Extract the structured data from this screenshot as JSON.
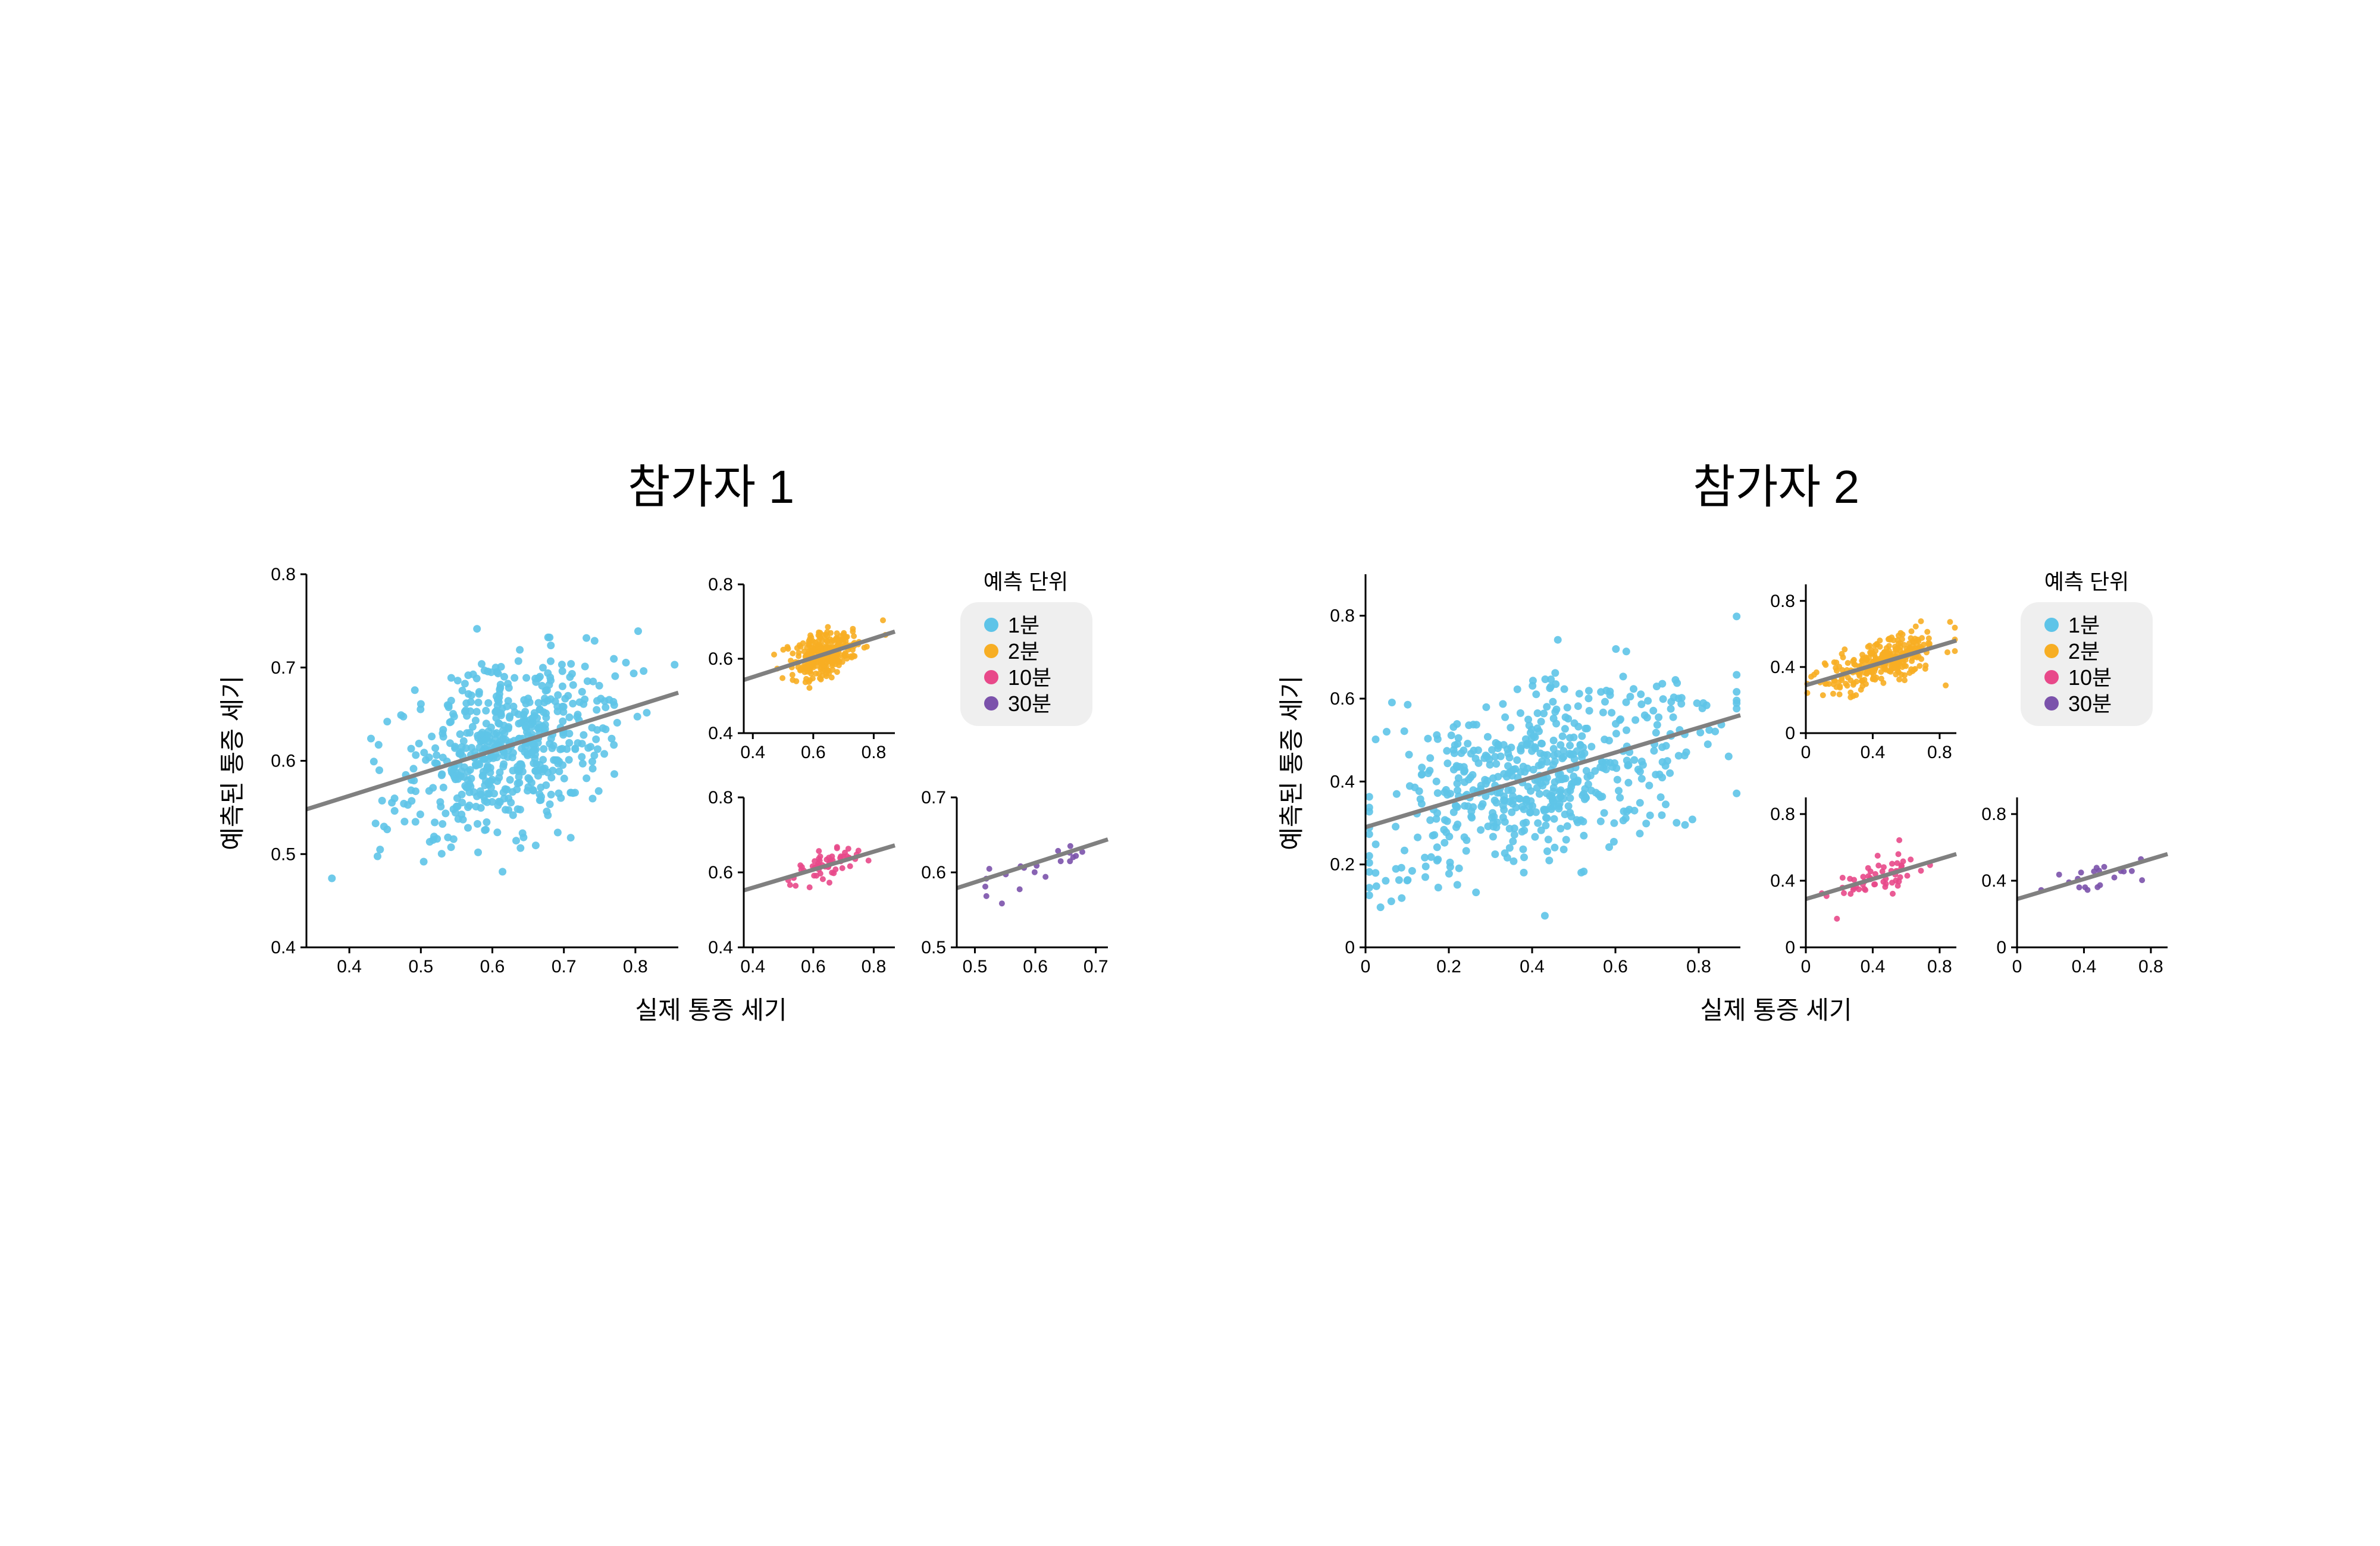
{
  "figure": {
    "colors": {
      "1m": "#5ec4e8",
      "2m": "#f7ae24",
      "10m": "#e8498a",
      "30m": "#7b52ab",
      "fit": "#808080"
    },
    "legend": {
      "title": "예측 단위",
      "items": [
        {
          "key": "1m",
          "label": "1분"
        },
        {
          "key": "2m",
          "label": "2분"
        },
        {
          "key": "10m",
          "label": "10분"
        },
        {
          "key": "30m",
          "label": "30분"
        }
      ]
    },
    "shared_ylabel": "예측된 통증 세기",
    "shared_xlabel": "실제 통증 세기"
  },
  "chart_data": [
    {
      "panel_title": "참가자 1",
      "xlabel": "실제 통증 세기",
      "ylabel": "예측된 통증 세기",
      "subplots": [
        {
          "name": "p1-1m",
          "type": "scatter",
          "series_key": "1m",
          "n": 560,
          "xlim": [
            0.34,
            0.86
          ],
          "ylim": [
            0.4,
            0.8
          ],
          "xticks": [
            0.4,
            0.5,
            0.6,
            0.7,
            0.8
          ],
          "yticks": [
            0.4,
            0.5,
            0.6,
            0.7,
            0.8
          ],
          "xtick_labels": [
            "0.4",
            "0.5",
            "0.6",
            "0.7",
            "0.8"
          ],
          "ytick_labels": [
            "0.4",
            "0.5",
            "0.6",
            "0.7",
            "0.8"
          ],
          "x_mean": 0.62,
          "x_sd": 0.075,
          "slope": 0.24,
          "intercept": 0.467,
          "noise_sd": 0.045,
          "fit_line": {
            "x": [
              0.34,
              0.86
            ],
            "y": [
              0.548,
              0.673
            ]
          }
        },
        {
          "name": "p1-2m",
          "type": "scatter",
          "series_key": "2m",
          "n": 280,
          "xlim": [
            0.37,
            0.87
          ],
          "ylim": [
            0.4,
            0.8
          ],
          "xticks": [
            0.4,
            0.6,
            0.8
          ],
          "yticks": [
            0.4,
            0.6,
            0.8
          ],
          "xtick_labels": [
            "0.4",
            "0.6",
            "0.8"
          ],
          "ytick_labels": [
            "0.4",
            "0.6",
            "0.8"
          ],
          "x_mean": 0.64,
          "x_sd": 0.06,
          "slope": 0.26,
          "intercept": 0.447,
          "noise_sd": 0.03,
          "fit_line": {
            "x": [
              0.37,
              0.87
            ],
            "y": [
              0.543,
              0.673
            ]
          }
        },
        {
          "name": "p1-10m",
          "type": "scatter",
          "series_key": "10m",
          "n": 56,
          "xlim": [
            0.37,
            0.87
          ],
          "ylim": [
            0.4,
            0.8
          ],
          "xticks": [
            0.4,
            0.6,
            0.8
          ],
          "yticks": [
            0.4,
            0.6,
            0.8
          ],
          "xtick_labels": [
            "0.4",
            "0.6",
            "0.8"
          ],
          "ytick_labels": [
            "0.4",
            "0.6",
            "0.8"
          ],
          "x_mean": 0.64,
          "x_sd": 0.055,
          "slope": 0.24,
          "intercept": 0.463,
          "noise_sd": 0.022,
          "fit_line": {
            "x": [
              0.37,
              0.87
            ],
            "y": [
              0.552,
              0.672
            ]
          }
        },
        {
          "name": "p1-30m",
          "type": "scatter",
          "series_key": "30m",
          "n": 20,
          "xlim": [
            0.47,
            0.72
          ],
          "ylim": [
            0.5,
            0.7
          ],
          "xticks": [
            0.5,
            0.6,
            0.7
          ],
          "yticks": [
            0.5,
            0.6,
            0.7
          ],
          "xtick_labels": [
            "0.5",
            "0.6",
            "0.7"
          ],
          "ytick_labels": [
            "0.5",
            "0.6",
            "0.7"
          ],
          "x_mean": 0.61,
          "x_sd": 0.05,
          "slope": 0.26,
          "intercept": 0.457,
          "noise_sd": 0.015,
          "fit_line": {
            "x": [
              0.47,
              0.72
            ],
            "y": [
              0.579,
              0.644
            ]
          }
        }
      ]
    },
    {
      "panel_title": "참가자 2",
      "xlabel": "실제 통증 세기",
      "ylabel": "예측된 통증 세기",
      "subplots": [
        {
          "name": "p2-1m",
          "type": "scatter",
          "series_key": "1m",
          "n": 560,
          "xlim": [
            0,
            0.9
          ],
          "ylim": [
            0,
            0.9
          ],
          "xticks": [
            0,
            0.2,
            0.4,
            0.6,
            0.8
          ],
          "yticks": [
            0,
            0.2,
            0.4,
            0.6,
            0.8
          ],
          "xtick_labels": [
            "0",
            "0.2",
            "0.4",
            "0.6",
            "0.8"
          ],
          "ytick_labels": [
            "0",
            "0.2",
            "0.4",
            "0.6",
            "0.8"
          ],
          "x_mean": 0.42,
          "x_sd": 0.2,
          "slope": 0.3,
          "intercept": 0.29,
          "noise_sd": 0.11,
          "fit_line": {
            "x": [
              0,
              0.9
            ],
            "y": [
              0.29,
              0.56
            ]
          }
        },
        {
          "name": "p2-2m",
          "type": "scatter",
          "series_key": "2m",
          "n": 280,
          "xlim": [
            0,
            0.9
          ],
          "ylim": [
            0,
            0.9
          ],
          "xticks": [
            0,
            0.4,
            0.8
          ],
          "yticks": [
            0,
            0.4,
            0.8
          ],
          "xtick_labels": [
            "0",
            "0.4",
            "0.8"
          ],
          "ytick_labels": [
            "0",
            "0.4",
            "0.8"
          ],
          "x_mean": 0.45,
          "x_sd": 0.17,
          "slope": 0.3,
          "intercept": 0.29,
          "noise_sd": 0.07,
          "fit_line": {
            "x": [
              0,
              0.9
            ],
            "y": [
              0.29,
              0.56
            ]
          }
        },
        {
          "name": "p2-10m",
          "type": "scatter",
          "series_key": "10m",
          "n": 56,
          "xlim": [
            0,
            0.9
          ],
          "ylim": [
            0,
            0.9
          ],
          "xticks": [
            0,
            0.4,
            0.8
          ],
          "yticks": [
            0,
            0.4,
            0.8
          ],
          "xtick_labels": [
            "0",
            "0.4",
            "0.8"
          ],
          "ytick_labels": [
            "0",
            "0.4",
            "0.8"
          ],
          "x_mean": 0.42,
          "x_sd": 0.15,
          "slope": 0.3,
          "intercept": 0.29,
          "noise_sd": 0.06,
          "fit_line": {
            "x": [
              0,
              0.9
            ],
            "y": [
              0.29,
              0.56
            ]
          }
        },
        {
          "name": "p2-30m",
          "type": "scatter",
          "series_key": "30m",
          "n": 20,
          "xlim": [
            0,
            0.9
          ],
          "ylim": [
            0,
            0.9
          ],
          "xticks": [
            0,
            0.4,
            0.8
          ],
          "yticks": [
            0,
            0.4,
            0.8
          ],
          "xtick_labels": [
            "0",
            "0.4",
            "0.8"
          ],
          "ytick_labels": [
            "0",
            "0.4",
            "0.8"
          ],
          "x_mean": 0.42,
          "x_sd": 0.16,
          "slope": 0.3,
          "intercept": 0.29,
          "noise_sd": 0.05,
          "fit_line": {
            "x": [
              0,
              0.9
            ],
            "y": [
              0.29,
              0.56
            ]
          }
        }
      ]
    }
  ]
}
